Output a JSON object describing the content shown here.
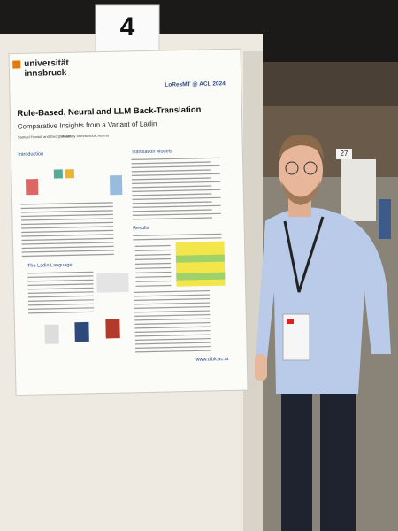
{
  "board_number": "4",
  "side_sign": "27",
  "poster": {
    "logo": {
      "line1": "universität",
      "line2": "innsbruck"
    },
    "venue": "LoResMT @ ACL 2024",
    "title": "Rule-Based, Neural and LLM Back-Translation",
    "subtitle": "Comparative Insights from a Variant of Ladin",
    "authors": "Samuel Frontull and Georg Moser",
    "affiliation": "University of Innsbruck, Austria",
    "sections": [
      "Introduction",
      "Translation Models",
      "The Ladin Language",
      "Results"
    ],
    "url": "www.uibk.ac.at"
  }
}
